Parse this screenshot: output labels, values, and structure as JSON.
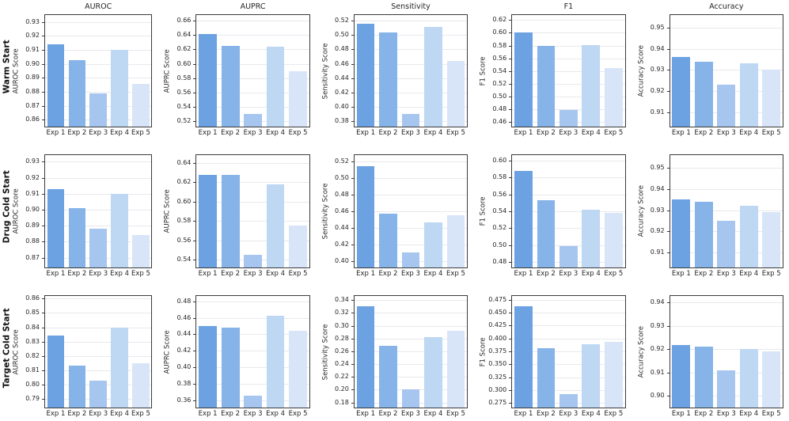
{
  "figure": {
    "row_labels": [
      "Warm Start",
      "Drug Cold Start",
      "Target Cold Start"
    ],
    "column_titles": [
      "AUROC",
      "AUPRC",
      "Sensitivity",
      "F1",
      "Accuracy"
    ],
    "categories": [
      "Exp 1",
      "Exp 2",
      "Exp 3",
      "Exp 4",
      "Exp 5"
    ],
    "bar_colors": [
      "#6CA2E2",
      "#86B3E8",
      "#A6C6EF",
      "#BED7F3",
      "#D8E5F8"
    ],
    "grid_color": "#e9e9ef",
    "spine_color": "#3b3b3b",
    "text_color": "#262626",
    "grid": true,
    "legend": false
  },
  "chart_data": [
    {
      "type": "bar",
      "row": "Warm Start",
      "metric": "AUROC",
      "title": "AUROC",
      "ylabel": "AUROC Score",
      "categories": [
        "Exp 1",
        "Exp 2",
        "Exp 3",
        "Exp 4",
        "Exp 5"
      ],
      "values": [
        0.914,
        0.903,
        0.879,
        0.91,
        0.886
      ],
      "yticks": [
        0.86,
        0.87,
        0.88,
        0.89,
        0.9,
        0.91,
        0.92,
        0.93
      ],
      "ylim": [
        0.855,
        0.935
      ],
      "decimals": 2
    },
    {
      "type": "bar",
      "row": "Warm Start",
      "metric": "AUPRC",
      "title": "AUPRC",
      "ylabel": "AUPRC Score",
      "categories": [
        "Exp 1",
        "Exp 2",
        "Exp 3",
        "Exp 4",
        "Exp 5"
      ],
      "values": [
        0.642,
        0.625,
        0.53,
        0.624,
        0.59
      ],
      "yticks": [
        0.52,
        0.54,
        0.56,
        0.58,
        0.6,
        0.62,
        0.64,
        0.66
      ],
      "ylim": [
        0.512,
        0.668
      ],
      "decimals": 2
    },
    {
      "type": "bar",
      "row": "Warm Start",
      "metric": "Sensitivity",
      "title": "Sensitivity",
      "ylabel": "Sensitivity Score",
      "categories": [
        "Exp 1",
        "Exp 2",
        "Exp 3",
        "Exp 4",
        "Exp 5"
      ],
      "values": [
        0.516,
        0.504,
        0.39,
        0.511,
        0.464
      ],
      "yticks": [
        0.38,
        0.4,
        0.42,
        0.44,
        0.46,
        0.48,
        0.5,
        0.52
      ],
      "ylim": [
        0.372,
        0.528
      ],
      "decimals": 2
    },
    {
      "type": "bar",
      "row": "Warm Start",
      "metric": "F1",
      "title": "F1",
      "ylabel": "F1 Score",
      "categories": [
        "Exp 1",
        "Exp 2",
        "Exp 3",
        "Exp 4",
        "Exp 5"
      ],
      "values": [
        0.6,
        0.58,
        0.478,
        0.581,
        0.545
      ],
      "yticks": [
        0.46,
        0.48,
        0.5,
        0.52,
        0.54,
        0.56,
        0.58,
        0.6,
        0.62
      ],
      "ylim": [
        0.452,
        0.628
      ],
      "decimals": 2
    },
    {
      "type": "bar",
      "row": "Warm Start",
      "metric": "Accuracy",
      "title": "Accuracy",
      "ylabel": "Accuracy Score",
      "categories": [
        "Exp 1",
        "Exp 2",
        "Exp 3",
        "Exp 4",
        "Exp 5"
      ],
      "values": [
        0.936,
        0.934,
        0.923,
        0.933,
        0.93
      ],
      "yticks": [
        0.91,
        0.92,
        0.93,
        0.94,
        0.95
      ],
      "ylim": [
        0.903,
        0.956
      ],
      "decimals": 2
    },
    {
      "type": "bar",
      "row": "Drug Cold Start",
      "metric": "AUROC",
      "title": "",
      "ylabel": "AUROC Score",
      "categories": [
        "Exp 1",
        "Exp 2",
        "Exp 3",
        "Exp 4",
        "Exp 5"
      ],
      "values": [
        0.913,
        0.901,
        0.888,
        0.91,
        0.884
      ],
      "yticks": [
        0.87,
        0.88,
        0.89,
        0.9,
        0.91,
        0.92,
        0.93
      ],
      "ylim": [
        0.864,
        0.934
      ],
      "decimals": 2
    },
    {
      "type": "bar",
      "row": "Drug Cold Start",
      "metric": "AUPRC",
      "title": "",
      "ylabel": "AUPRC Score",
      "categories": [
        "Exp 1",
        "Exp 2",
        "Exp 3",
        "Exp 4",
        "Exp 5"
      ],
      "values": [
        0.628,
        0.628,
        0.545,
        0.618,
        0.575
      ],
      "yticks": [
        0.54,
        0.56,
        0.58,
        0.6,
        0.62,
        0.64
      ],
      "ylim": [
        0.532,
        0.648
      ],
      "decimals": 2
    },
    {
      "type": "bar",
      "row": "Drug Cold Start",
      "metric": "Sensitivity",
      "title": "",
      "ylabel": "Sensitivity Score",
      "categories": [
        "Exp 1",
        "Exp 2",
        "Exp 3",
        "Exp 4",
        "Exp 5"
      ],
      "values": [
        0.514,
        0.457,
        0.411,
        0.447,
        0.455
      ],
      "yticks": [
        0.4,
        0.42,
        0.44,
        0.46,
        0.48,
        0.5,
        0.52
      ],
      "ylim": [
        0.393,
        0.527
      ],
      "decimals": 2
    },
    {
      "type": "bar",
      "row": "Drug Cold Start",
      "metric": "F1",
      "title": "",
      "ylabel": "F1 Score",
      "categories": [
        "Exp 1",
        "Exp 2",
        "Exp 3",
        "Exp 4",
        "Exp 5"
      ],
      "values": [
        0.588,
        0.553,
        0.499,
        0.542,
        0.538
      ],
      "yticks": [
        0.48,
        0.5,
        0.52,
        0.54,
        0.56,
        0.58,
        0.6
      ],
      "ylim": [
        0.474,
        0.606
      ],
      "decimals": 2
    },
    {
      "type": "bar",
      "row": "Drug Cold Start",
      "metric": "Accuracy",
      "title": "",
      "ylabel": "Accuracy Score",
      "categories": [
        "Exp 1",
        "Exp 2",
        "Exp 3",
        "Exp 4",
        "Exp 5"
      ],
      "values": [
        0.935,
        0.934,
        0.925,
        0.932,
        0.929
      ],
      "yticks": [
        0.91,
        0.92,
        0.93,
        0.94,
        0.95
      ],
      "ylim": [
        0.903,
        0.956
      ],
      "decimals": 2
    },
    {
      "type": "bar",
      "row": "Target Cold Start",
      "metric": "AUROC",
      "title": "",
      "ylabel": "AUROC Score",
      "categories": [
        "Exp 1",
        "Exp 2",
        "Exp 3",
        "Exp 4",
        "Exp 5"
      ],
      "values": [
        0.834,
        0.813,
        0.803,
        0.84,
        0.815
      ],
      "yticks": [
        0.79,
        0.8,
        0.81,
        0.82,
        0.83,
        0.84,
        0.85,
        0.86
      ],
      "ylim": [
        0.784,
        0.862
      ],
      "decimals": 2
    },
    {
      "type": "bar",
      "row": "Target Cold Start",
      "metric": "AUPRC",
      "title": "",
      "ylabel": "AUPRC Score",
      "categories": [
        "Exp 1",
        "Exp 2",
        "Exp 3",
        "Exp 4",
        "Exp 5"
      ],
      "values": [
        0.45,
        0.448,
        0.365,
        0.463,
        0.444
      ],
      "yticks": [
        0.36,
        0.38,
        0.4,
        0.42,
        0.44,
        0.46,
        0.48
      ],
      "ylim": [
        0.351,
        0.487
      ],
      "decimals": 2
    },
    {
      "type": "bar",
      "row": "Target Cold Start",
      "metric": "Sensitivity",
      "title": "",
      "ylabel": "Sensitivity Score",
      "categories": [
        "Exp 1",
        "Exp 2",
        "Exp 3",
        "Exp 4",
        "Exp 5"
      ],
      "values": [
        0.331,
        0.269,
        0.2,
        0.282,
        0.292
      ],
      "yticks": [
        0.18,
        0.2,
        0.22,
        0.24,
        0.26,
        0.28,
        0.3,
        0.32,
        0.34
      ],
      "ylim": [
        0.172,
        0.347
      ],
      "decimals": 2
    },
    {
      "type": "bar",
      "row": "Target Cold Start",
      "metric": "F1",
      "title": "",
      "ylabel": "F1 Score",
      "categories": [
        "Exp 1",
        "Exp 2",
        "Exp 3",
        "Exp 4",
        "Exp 5"
      ],
      "values": [
        0.463,
        0.381,
        0.292,
        0.389,
        0.394
      ],
      "yticks": [
        0.275,
        0.3,
        0.325,
        0.35,
        0.375,
        0.4,
        0.425,
        0.45,
        0.475
      ],
      "ylim": [
        0.266,
        0.483
      ],
      "decimals": 3
    },
    {
      "type": "bar",
      "row": "Target Cold Start",
      "metric": "Accuracy",
      "title": "",
      "ylabel": "Accuracy Score",
      "categories": [
        "Exp 1",
        "Exp 2",
        "Exp 3",
        "Exp 4",
        "Exp 5"
      ],
      "values": [
        0.922,
        0.921,
        0.911,
        0.92,
        0.919
      ],
      "yticks": [
        0.9,
        0.91,
        0.92,
        0.93,
        0.94
      ],
      "ylim": [
        0.895,
        0.943
      ],
      "decimals": 2
    }
  ]
}
